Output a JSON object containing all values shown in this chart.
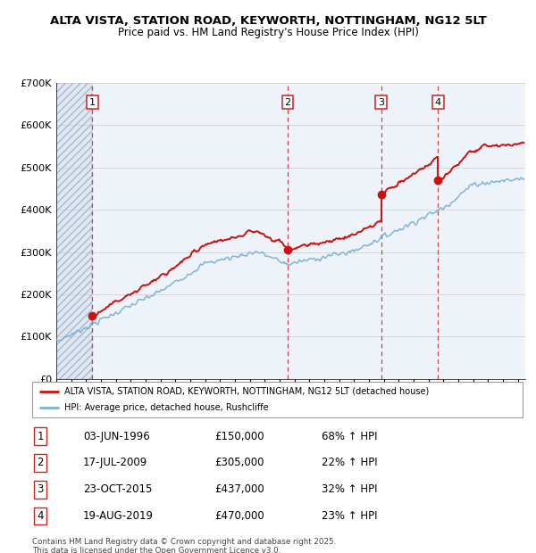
{
  "title1": "ALTA VISTA, STATION ROAD, KEYWORTH, NOTTINGHAM, NG12 5LT",
  "title2": "Price paid vs. HM Land Registry's House Price Index (HPI)",
  "ylim": [
    0,
    700000
  ],
  "yticks": [
    0,
    100000,
    200000,
    300000,
    400000,
    500000,
    600000,
    700000
  ],
  "ytick_labels": [
    "£0",
    "£100K",
    "£200K",
    "£300K",
    "£400K",
    "£500K",
    "£600K",
    "£700K"
  ],
  "xlim_start": 1994.0,
  "xlim_end": 2025.5,
  "sales": [
    {
      "date_num": 1996.42,
      "price": 150000,
      "label": "1"
    },
    {
      "date_num": 2009.54,
      "price": 305000,
      "label": "2"
    },
    {
      "date_num": 2015.81,
      "price": 437000,
      "label": "3"
    },
    {
      "date_num": 2019.63,
      "price": 470000,
      "label": "4"
    }
  ],
  "hpi_color": "#7ab3d4",
  "price_color": "#cc1111",
  "legend_line1": "ALTA VISTA, STATION ROAD, KEYWORTH, NOTTINGHAM, NG12 5LT (detached house)",
  "legend_line2": "HPI: Average price, detached house, Rushcliffe",
  "table_rows": [
    {
      "num": "1",
      "date": "03-JUN-1996",
      "price": "£150,000",
      "change": "68% ↑ HPI"
    },
    {
      "num": "2",
      "date": "17-JUL-2009",
      "price": "£305,000",
      "change": "22% ↑ HPI"
    },
    {
      "num": "3",
      "date": "23-OCT-2015",
      "price": "£437,000",
      "change": "32% ↑ HPI"
    },
    {
      "num": "4",
      "date": "19-AUG-2019",
      "price": "£470,000",
      "change": "23% ↑ HPI"
    }
  ],
  "footer": "Contains HM Land Registry data © Crown copyright and database right 2025.\nThis data is licensed under the Open Government Licence v3.0."
}
